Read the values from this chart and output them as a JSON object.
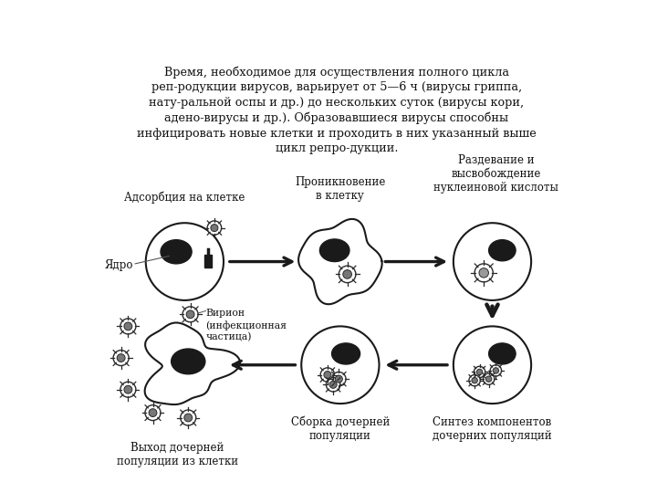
{
  "title_text": "Время, необходимое для осуществления полного цикла\nреп-родукции вирусов, варьирует от 5—6 ч (вирусы гриппа,\nнату-ральной оспы и др.) до нескольких суток (вирусы кори,\nадено-вирусы и др.). Образовавшиеся вирусы способны\nинфицировать новые клетки и проходить в них указанный выше\nцикл репро-дукции.",
  "bg_color": "#ffffff",
  "cell_color": "#ffffff",
  "cell_edge": "#1a1a1a",
  "nucleus_color": "#1a1a1a",
  "arrow_color": "#1a1a1a",
  "labels": {
    "adsorb": "Адсорбция на клетке",
    "penetrate": "Проникновение\nв клетку",
    "uncoat": "Раздевание и\nвысвобождение\nнуклеиновой кислоты",
    "yadro": "Ядро",
    "virion": "Вирион\n(инфекционная\nчастица)",
    "synth": "Синтез компонентов\nдочерних популяций",
    "assembly": "Сборка дочерней\nпопуляции",
    "exit": "Выход дочерней\nпопуляции из клетки"
  }
}
